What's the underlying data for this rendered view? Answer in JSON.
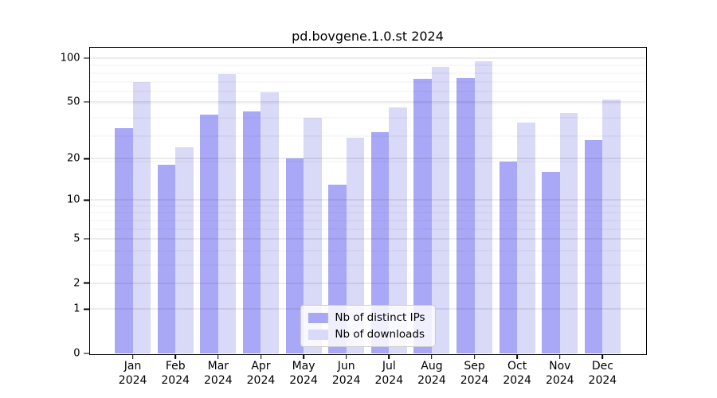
{
  "chart_data": {
    "type": "bar",
    "title": "pd.bovgene.1.0.st 2024",
    "year": "2024",
    "categories": [
      "Jan",
      "Feb",
      "Mar",
      "Apr",
      "May",
      "Jun",
      "Jul",
      "Aug",
      "Sep",
      "Oct",
      "Nov",
      "Dec"
    ],
    "series": [
      {
        "key": "distinct-ips",
        "name": "Nb of distinct IPs",
        "color": "#a8a8f7",
        "values": [
          33,
          18,
          41,
          43,
          20,
          13,
          31,
          72,
          73,
          19,
          16,
          27
        ]
      },
      {
        "key": "downloads",
        "name": "Nb of downloads",
        "color": "#d9d9f8",
        "values": [
          69,
          24,
          78,
          58,
          39,
          28,
          46,
          87,
          95,
          36,
          42,
          52
        ]
      }
    ],
    "yscale": "log1p",
    "yticks": [
      0,
      1,
      2,
      5,
      10,
      20,
      50,
      100
    ],
    "ylim": [
      0,
      118
    ],
    "grid": true,
    "grid_minor_values": [
      3,
      4,
      6,
      7,
      8,
      9,
      19,
      29,
      39,
      49,
      59,
      69,
      79,
      89
    ],
    "legend_position": "lower center"
  }
}
